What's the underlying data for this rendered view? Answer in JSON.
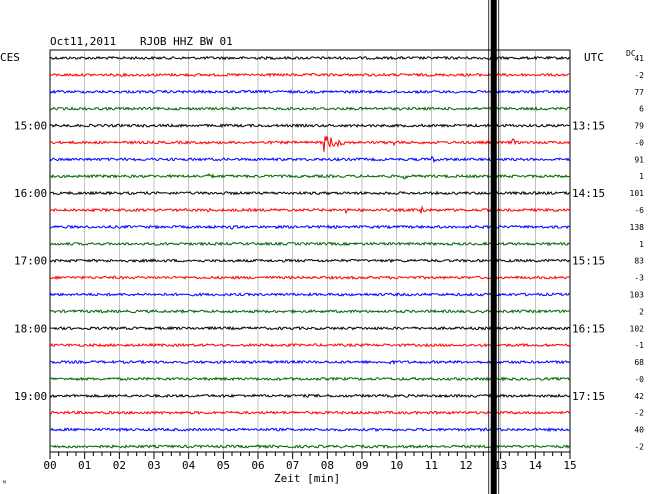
{
  "header": {
    "date": "Oct11,2011",
    "station": "RJOB HHZ BW 01",
    "left_zone": "CES",
    "right_zone": "UTC",
    "dc_label": "DC"
  },
  "chart_data": {
    "type": "line",
    "title": "Oct11,2011   RJOB HHZ BW 01",
    "xlabel": "Zeit [min]",
    "x_range": [
      0,
      15
    ],
    "x_ticks": [
      "00",
      "01",
      "02",
      "03",
      "04",
      "05",
      "06",
      "07",
      "08",
      "09",
      "10",
      "11",
      "12",
      "13",
      "14",
      "15"
    ],
    "trace_colors": [
      "#000000",
      "#ff0000",
      "#0000ff",
      "#006600"
    ],
    "traces_count": 24,
    "left_time_labels": [
      {
        "row": 4,
        "text": "15:00"
      },
      {
        "row": 8,
        "text": "16:00"
      },
      {
        "row": 12,
        "text": "17:00"
      },
      {
        "row": 16,
        "text": "18:00"
      },
      {
        "row": 20,
        "text": "19:00"
      }
    ],
    "right_time_labels": [
      {
        "row": 4,
        "text": "13:15"
      },
      {
        "row": 8,
        "text": "14:15"
      },
      {
        "row": 12,
        "text": "15:15"
      },
      {
        "row": 16,
        "text": "16:15"
      },
      {
        "row": 20,
        "text": "17:15"
      }
    ],
    "dc_offsets": [
      "41",
      "-2",
      "77",
      "6",
      "79",
      "-0",
      "91",
      "1",
      "101",
      "-6",
      "138",
      "1",
      "83",
      "-3",
      "103",
      "2",
      "102",
      "-1",
      "68",
      "-0",
      "42",
      "-2",
      "40",
      "-2"
    ],
    "events": [
      {
        "row": 5,
        "minute": 7.9,
        "amplitude": 10,
        "duration_min": 1.2
      },
      {
        "row": 5,
        "minute": 9.9,
        "amplitude": 5,
        "duration_min": 0.5
      },
      {
        "row": 5,
        "minute": 13.3,
        "amplitude": 7,
        "duration_min": 0.3
      },
      {
        "row": 6,
        "minute": 11.0,
        "amplitude": 6,
        "duration_min": 0.3
      },
      {
        "row": 7,
        "minute": 4.5,
        "amplitude": 3,
        "duration_min": 1.0
      },
      {
        "row": 7,
        "minute": 10.2,
        "amplitude": 3,
        "duration_min": 1.0
      },
      {
        "row": 9,
        "minute": 4.5,
        "amplitude": 3,
        "duration_min": 0.6
      },
      {
        "row": 9,
        "minute": 8.5,
        "amplitude": 4,
        "duration_min": 0.4
      },
      {
        "row": 9,
        "minute": 10.7,
        "amplitude": 6,
        "duration_min": 0.4
      },
      {
        "row": 9,
        "minute": 14.5,
        "amplitude": 6,
        "duration_min": 0.2
      },
      {
        "row": 10,
        "minute": 5.2,
        "amplitude": 3,
        "duration_min": 0.5
      },
      {
        "row": 15,
        "minute": 1.5,
        "amplitude": 3,
        "duration_min": 0.2
      },
      {
        "row": 18,
        "minute": 9.8,
        "amplitude": 3,
        "duration_min": 0.5
      }
    ],
    "marker_minute": 12.8
  },
  "corner_mark": "ᴹ"
}
